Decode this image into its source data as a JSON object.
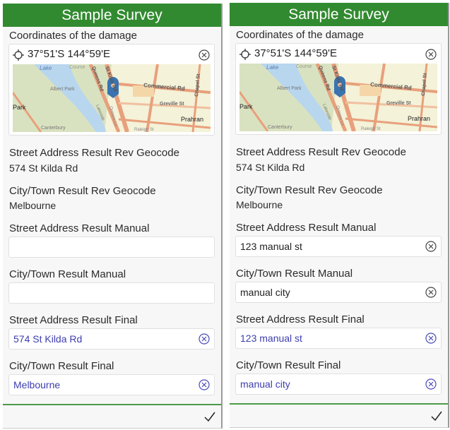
{
  "panels": [
    {
      "title": "Sample Survey",
      "coord_label": "Coordinates of the damage",
      "coord_value": "37°51'S 144°59'E",
      "map_labels": [
        "Lake",
        "Course",
        "Albert Park",
        "Park",
        "Canterbury",
        "Queens Rd",
        "St Kilda Rd",
        "Commercial Rd",
        "Chapel St",
        "Greville St",
        "Prahran",
        "Lakeside",
        "Queens Ln",
        "Raleigh St"
      ],
      "rev_street_label": "Street Address Result Rev Geocode",
      "rev_street_value": "574 St Kilda Rd",
      "rev_city_label": "City/Town Result Rev Geocode",
      "rev_city_value": "Melbourne",
      "manual_street_label": "Street Address Result Manual",
      "manual_street_value": "",
      "manual_city_label": "City/Town Result Manual",
      "manual_city_value": "",
      "final_street_label": "Street Address Result Final",
      "final_street_value": "574 St Kilda Rd",
      "final_city_label": "City/Town Result Final",
      "final_city_value": "Melbourne"
    },
    {
      "title": "Sample Survey",
      "coord_label": "Coordinates of the damage",
      "coord_value": "37°51'S 144°59'E",
      "map_labels": [
        "Lake",
        "Course",
        "Albert Park",
        "Park",
        "Canterbury",
        "Queens Rd",
        "St Kilda Rd",
        "Commercial Rd",
        "Chapel St",
        "Greville St",
        "Prahran",
        "Lakeside",
        "Queens Ln",
        "Raleigh St"
      ],
      "rev_street_label": "Street Address Result Rev Geocode",
      "rev_street_value": "574 St Kilda Rd",
      "rev_city_label": "City/Town Result Rev Geocode",
      "rev_city_value": "Melbourne",
      "manual_street_label": "Street Address Result Manual",
      "manual_street_value": "123 manual st",
      "manual_city_label": "City/Town Result Manual",
      "manual_city_value": "manual city",
      "final_street_label": "Street Address Result Final",
      "final_street_value": "123 manual st",
      "final_city_label": "City/Town Result Final",
      "final_city_value": "manual city"
    }
  ],
  "colors": {
    "header": "#328a30",
    "final_text": "#3d3db0",
    "pin": "#3a73b0",
    "icon": "#555555"
  }
}
